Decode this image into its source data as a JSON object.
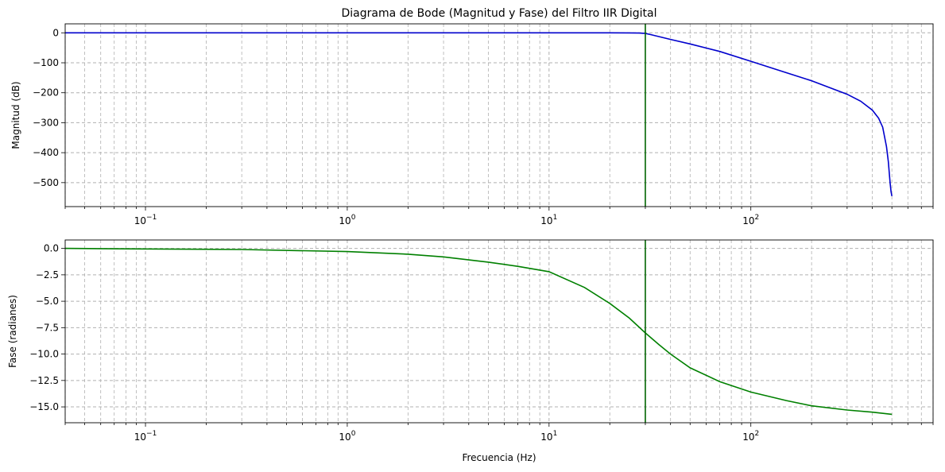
{
  "chart_data": [
    {
      "type": "line",
      "title": "Diagrama de Bode (Magnitud y Fase) del Filtro IIR Digital",
      "xlabel": "",
      "ylabel": "Magnitud (dB)",
      "xscale": "log",
      "xlim": [
        0.04,
        800
      ],
      "ylim": [
        -580,
        30
      ],
      "grid": true,
      "grid_which": "both",
      "x_ticks": [
        {
          "value": 0.1,
          "base": "10",
          "exp": "−1"
        },
        {
          "value": 1,
          "base": "10",
          "exp": "0"
        },
        {
          "value": 10,
          "base": "10",
          "exp": "1"
        },
        {
          "value": 100,
          "base": "10",
          "exp": "2"
        }
      ],
      "y_ticks": [
        {
          "value": 0,
          "label": "0"
        },
        {
          "value": -100,
          "label": "−100"
        },
        {
          "value": -200,
          "label": "−200"
        },
        {
          "value": -300,
          "label": "−300"
        },
        {
          "value": -400,
          "label": "−400"
        },
        {
          "value": -500,
          "label": "−500"
        }
      ],
      "vline": {
        "x": 30,
        "color": "#006400"
      },
      "series": [
        {
          "color": "#0000cd",
          "x": [
            0.04,
            0.1,
            1,
            5,
            10,
            20,
            25,
            28,
            30,
            32,
            40,
            50,
            70,
            100,
            150,
            200,
            300,
            350,
            400,
            430,
            450,
            470,
            480,
            490,
            495,
            500
          ],
          "y": [
            0,
            0,
            0,
            0,
            0,
            0,
            -0.2,
            -0.8,
            -2,
            -6,
            -22,
            -37,
            -62,
            -95,
            -133,
            -160,
            -205,
            -228,
            -258,
            -285,
            -315,
            -380,
            -430,
            -500,
            -530,
            -545
          ]
        }
      ]
    },
    {
      "type": "line",
      "title": "",
      "xlabel": "Frecuencia (Hz)",
      "ylabel": "Fase (radianes)",
      "xscale": "log",
      "xlim": [
        0.04,
        800
      ],
      "ylim": [
        -16.5,
        0.8
      ],
      "grid": true,
      "grid_which": "both",
      "x_ticks": [
        {
          "value": 0.1,
          "base": "10",
          "exp": "−1"
        },
        {
          "value": 1,
          "base": "10",
          "exp": "0"
        },
        {
          "value": 10,
          "base": "10",
          "exp": "1"
        },
        {
          "value": 100,
          "base": "10",
          "exp": "2"
        }
      ],
      "y_ticks": [
        {
          "value": 0,
          "label": "0.0"
        },
        {
          "value": -2.5,
          "label": "−2.5"
        },
        {
          "value": -5,
          "label": "−5.0"
        },
        {
          "value": -7.5,
          "label": "−7.5"
        },
        {
          "value": -10,
          "label": "−10.0"
        },
        {
          "value": -12.5,
          "label": "−12.5"
        },
        {
          "value": -15,
          "label": "−15.0"
        }
      ],
      "vline": {
        "x": 30,
        "color": "#006400"
      },
      "series": [
        {
          "color": "#008000",
          "x": [
            0.04,
            0.1,
            0.3,
            1,
            2,
            3,
            5,
            7,
            10,
            15,
            20,
            25,
            30,
            35,
            40,
            50,
            70,
            100,
            150,
            200,
            300,
            400,
            500
          ],
          "y": [
            0,
            -0.05,
            -0.1,
            -0.3,
            -0.55,
            -0.8,
            -1.3,
            -1.7,
            -2.2,
            -3.7,
            -5.2,
            -6.6,
            -8.0,
            -9.1,
            -10.0,
            -11.3,
            -12.6,
            -13.6,
            -14.4,
            -14.9,
            -15.3,
            -15.5,
            -15.7
          ]
        }
      ]
    }
  ]
}
